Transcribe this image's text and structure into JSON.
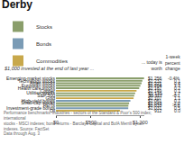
{
  "chart_data": {
    "type": "bar",
    "orientation": "horizontal",
    "title": "Derby",
    "subtitle": "$1,000 invested at the end of last year ...",
    "value_header": "... today is\nworth",
    "change_header": "1-week\npercent\nchange",
    "footnote": "Performance benchmarks: industries - sectors of the Standard & Poor's 500 index; international\nstocks - MSCI indexes; bond returns - Barclays Capital and BofA Merrill Lynch indexes. Source: FactSet\nData through Aug. 3",
    "categories": [
      "Emerging-market stocks",
      "Technology stocks",
      "Asian stocks",
      "European stocks",
      "Health care stocks",
      "Copper",
      "Utilities stocks",
      "S&P 500",
      "Gold",
      "High-yield bonds",
      "Small-cap stocks",
      "REITs",
      "Investment-grade bonds",
      "Oil"
    ],
    "series": [
      {
        "name": "Stocks",
        "color": "#8a9e6b",
        "values": [
          1256,
          1232,
          1221,
          1204,
          1187,
          null,
          1130,
          1117,
          null,
          null,
          1043,
          1033,
          null,
          null
        ],
        "value_labels": [
          "$1,256",
          "$1,232",
          "$1,221",
          "$1,204",
          "$1,187",
          null,
          "$1,130",
          "$1,117",
          null,
          null,
          "$1,043",
          "$1,033",
          null,
          null
        ]
      },
      {
        "name": "Bonds",
        "color": "#7a9bb5",
        "values": [
          null,
          null,
          null,
          null,
          null,
          null,
          null,
          null,
          null,
          1061,
          null,
          null,
          1031,
          null
        ],
        "value_labels": [
          null,
          null,
          null,
          null,
          null,
          null,
          null,
          null,
          null,
          "$1,061",
          null,
          null,
          "$1,031",
          null
        ]
      },
      {
        "name": "Commodities",
        "color": "#c8a84b",
        "values": [
          null,
          null,
          null,
          null,
          null,
          1149,
          null,
          null,
          1107,
          null,
          null,
          null,
          null,
          912
        ],
        "value_labels": [
          null,
          null,
          null,
          null,
          null,
          "$1,149",
          null,
          null,
          "$1,107",
          null,
          null,
          null,
          null,
          "912"
        ]
      }
    ],
    "week_change": [
      "-0.4%",
      "0.1",
      "0.6",
      "1.1",
      "0.2",
      "0.1",
      "1.7",
      "-0.1",
      "1.1",
      "0.1",
      "-2.0",
      "-0.8",
      "0.5",
      "0.0"
    ],
    "data_labels": true,
    "xlim": [
      0,
      1260
    ],
    "xticks": [
      {
        "value": 0,
        "label": "$0"
      },
      {
        "value": 500,
        "label": "$500"
      },
      {
        "value": 1200,
        "label": "$1,200"
      }
    ],
    "grid": false
  }
}
